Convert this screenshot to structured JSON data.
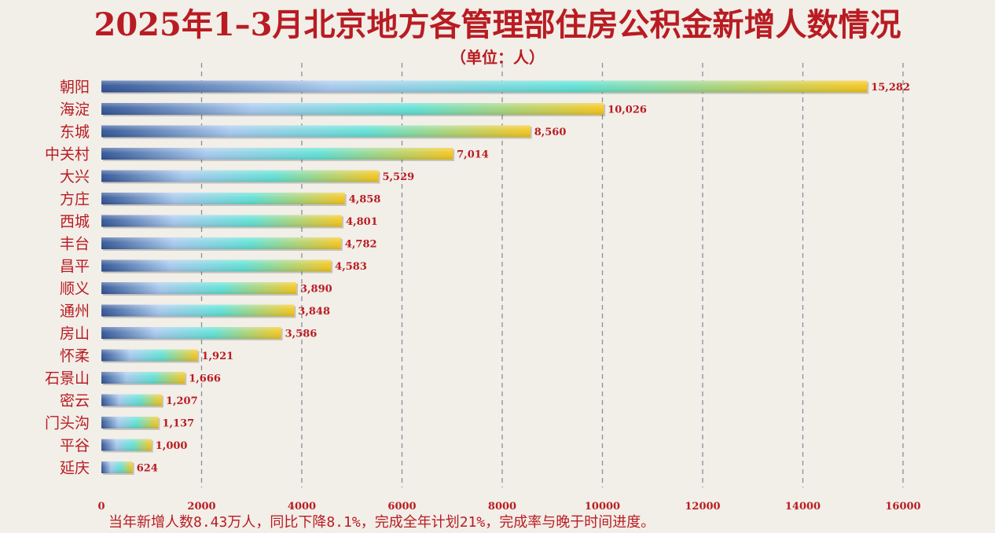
{
  "title": "2025年1–3月北京地方各管理部住房公积金新增人数情况",
  "subtitle": "（单位：人）",
  "footnote": "当年新增人数8.43万人，同比下降8.1%，完成全年计划21%，完成率与晚于时间进度。",
  "colors": {
    "text": "#b81c22",
    "background": "#f2eee8",
    "grid": "#8a8f9a",
    "bar_gradient": [
      "#2f5395",
      "#a7c9ee",
      "#5fe0d4",
      "#f5c61a"
    ]
  },
  "chart_data": {
    "type": "bar",
    "orientation": "horizontal",
    "categories": [
      "朝阳",
      "海淀",
      "东城",
      "中关村",
      "大兴",
      "方庄",
      "西城",
      "丰台",
      "昌平",
      "顺义",
      "通州",
      "房山",
      "怀柔",
      "石景山",
      "密云",
      "门头沟",
      "平谷",
      "延庆"
    ],
    "values": [
      15282,
      10026,
      8560,
      7014,
      5529,
      4858,
      4801,
      4782,
      4583,
      3890,
      3848,
      3586,
      1921,
      1666,
      1207,
      1137,
      1000,
      624
    ],
    "value_labels": [
      "15,282",
      "10,026",
      "8,560",
      "7,014",
      "5,529",
      "4,858",
      "4,801",
      "4,782",
      "4,583",
      "3,890",
      "3,848",
      "3,586",
      "1,921",
      "1,666",
      "1,207",
      "1,137",
      "1,000",
      "624"
    ],
    "xlim": [
      0,
      16000
    ],
    "xticks": [
      0,
      2000,
      4000,
      6000,
      8000,
      10000,
      12000,
      14000,
      16000
    ],
    "xtick_labels": [
      "0",
      "2000",
      "4000",
      "6000",
      "8000",
      "10000",
      "12000",
      "14000",
      "16000"
    ],
    "grid": "vertical dashed",
    "legend": "none"
  }
}
